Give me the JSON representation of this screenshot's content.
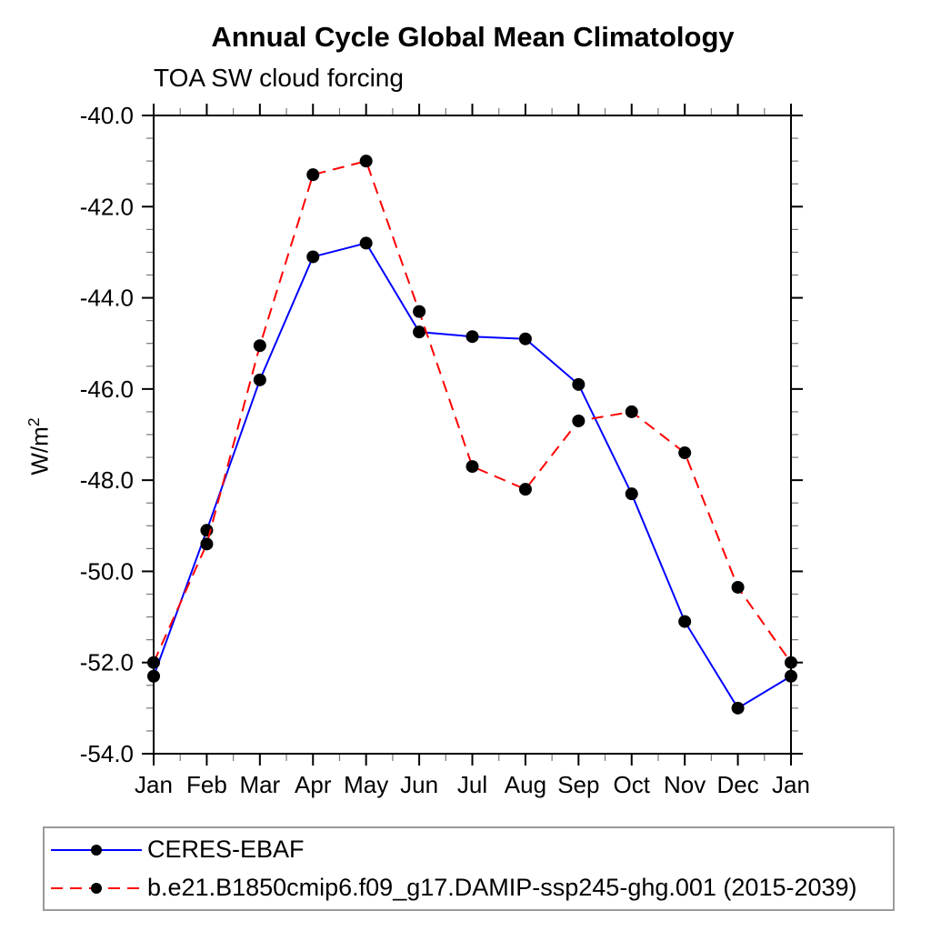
{
  "figure": {
    "title": "Annual Cycle Global Mean Climatology",
    "subtitle": "TOA SW cloud forcing",
    "ylabel_base": "W/m",
    "ylabel_exponent": "2"
  },
  "chart_data": {
    "type": "line",
    "title": "Annual Cycle Global Mean Climatology",
    "subtitle": "TOA SW cloud forcing",
    "xlabel": "",
    "ylabel": "W/m^2",
    "categories": [
      "Jan",
      "Feb",
      "Mar",
      "Apr",
      "May",
      "Jun",
      "Jul",
      "Aug",
      "Sep",
      "Oct",
      "Nov",
      "Dec",
      "Jan"
    ],
    "ylim": [
      -54.0,
      -40.0
    ],
    "y_major_tick_labels": [
      "-40.0",
      "-42.0",
      "-44.0",
      "-46.0",
      "-48.0",
      "-50.0",
      "-52.0",
      "-54.0"
    ],
    "y_major_step": 2.0,
    "y_minor_step": 0.5,
    "x_minor_step": 0.5,
    "grid": false,
    "legend_position": "bottom-left",
    "marker": {
      "shape": "circle",
      "color": "#000000",
      "radius": 7
    },
    "series": [
      {
        "name": "CERES-EBAF",
        "color": "#0000ff",
        "line_style": "solid",
        "values": [
          -52.3,
          -49.1,
          -45.8,
          -43.1,
          -42.8,
          -44.75,
          -44.85,
          -44.9,
          -45.9,
          -48.3,
          -51.1,
          -53.0,
          -52.3
        ]
      },
      {
        "name": "b.e21.B1850cmip6.f09_g17.DAMIP-ssp245-ghg.001 (2015-2039)",
        "color": "#ff0000",
        "line_style": "dashed",
        "values": [
          -52.0,
          -49.4,
          -45.05,
          -41.3,
          -41.0,
          -44.3,
          -47.7,
          -48.2,
          -46.7,
          -46.5,
          -47.4,
          -50.35,
          -52.0
        ]
      }
    ]
  }
}
